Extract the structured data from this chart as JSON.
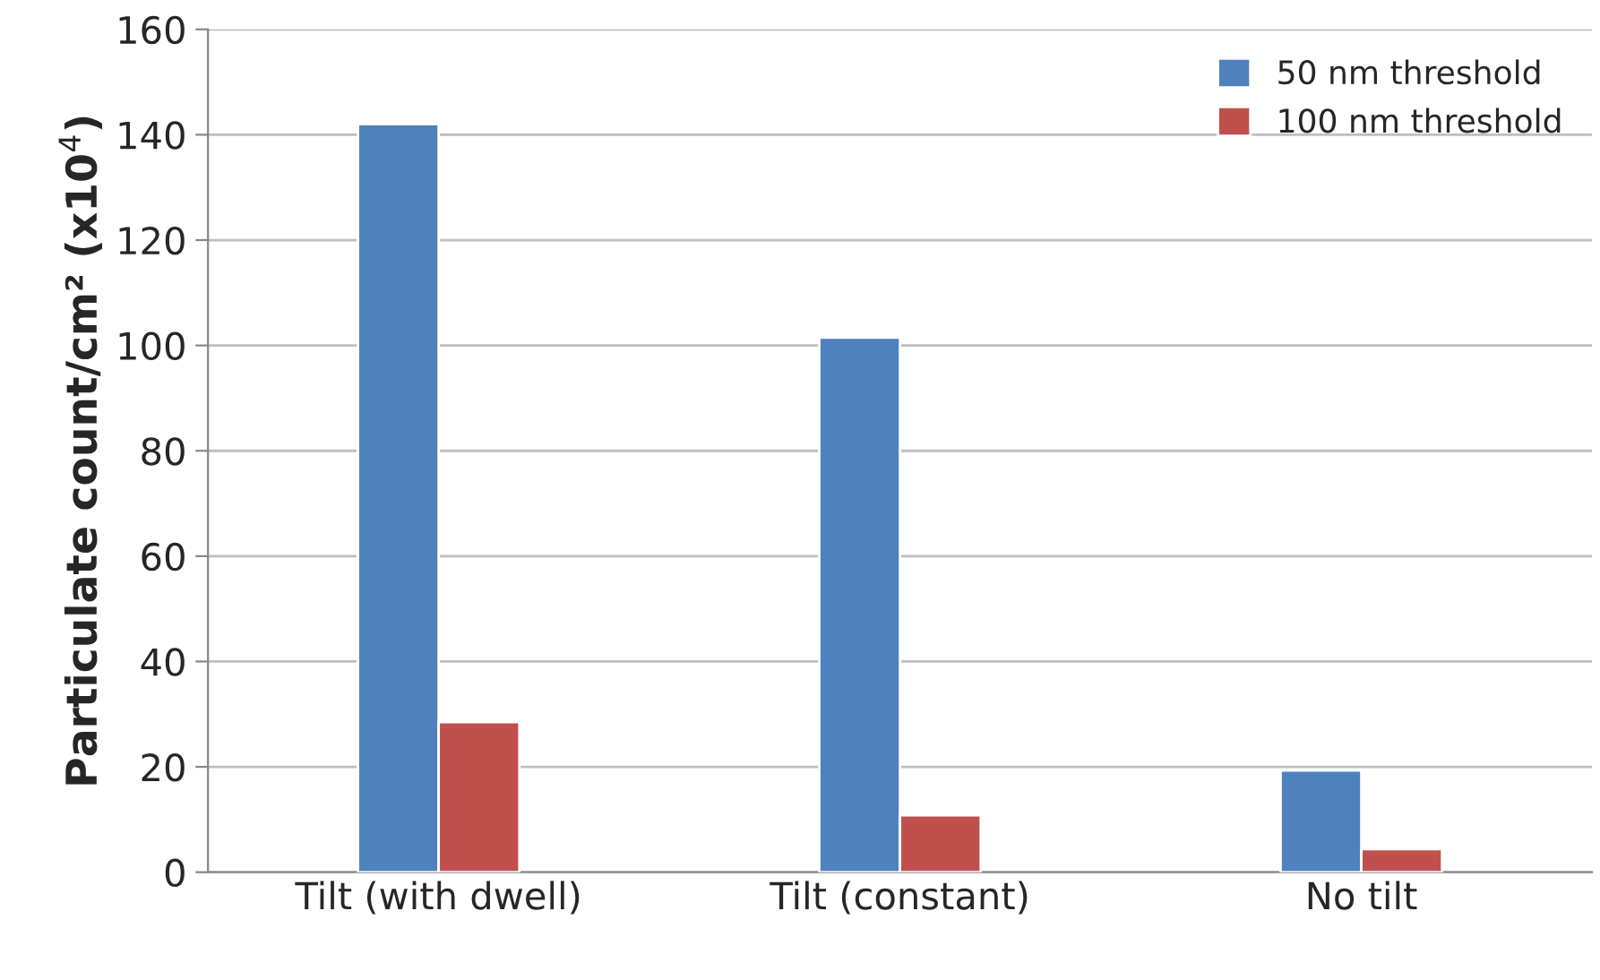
{
  "chart_data": {
    "type": "bar",
    "ylabel": "Particulate count/cm² (x10$^{4}$)",
    "categories": [
      "Tilt (with dwell)",
      "Tilt (constant)",
      "No tilt"
    ],
    "series": [
      {
        "name": "50 nm threshold",
        "color": "#4f81bd",
        "values": [
          142,
          101.5,
          19.3
        ]
      },
      {
        "name": "100 nm threshold",
        "color": "#c0504d",
        "values": [
          28.5,
          10.8,
          4.4
        ]
      }
    ],
    "ylim": [
      0,
      160
    ],
    "yticks": [
      0,
      20,
      40,
      60,
      80,
      100,
      120,
      140,
      160
    ],
    "grid": "y",
    "legend": "top right"
  }
}
